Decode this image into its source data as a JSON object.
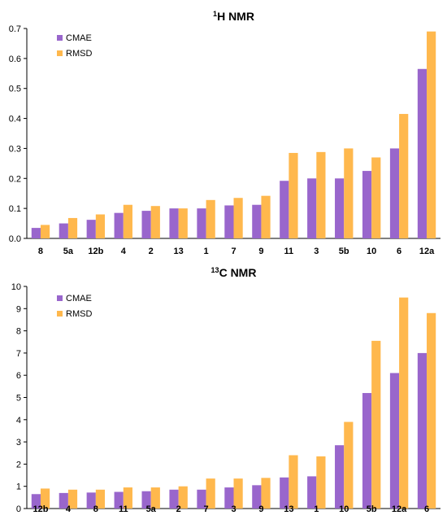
{
  "colors": {
    "CMAE": "#9966CC",
    "RMSD": "#FFB84D"
  },
  "chart_data": [
    {
      "type": "bar",
      "title_sup": "1",
      "title_main": "H NMR",
      "legend_position": "top-left",
      "ylim": [
        0,
        0.7
      ],
      "yticks": [
        "0.0",
        "0.1",
        "0.2",
        "0.3",
        "0.4",
        "0.5",
        "0.6",
        "0.7"
      ],
      "categories": [
        "8",
        "5a",
        "12b",
        "4",
        "2",
        "13",
        "1",
        "7",
        "9",
        "11",
        "3",
        "5b",
        "10",
        "6",
        "12a"
      ],
      "series": [
        {
          "name": "CMAE",
          "values": [
            0.035,
            0.05,
            0.062,
            0.085,
            0.092,
            0.1,
            0.1,
            0.11,
            0.112,
            0.192,
            0.2,
            0.2,
            0.225,
            0.3,
            0.565
          ]
        },
        {
          "name": "RMSD",
          "values": [
            0.045,
            0.068,
            0.08,
            0.112,
            0.108,
            0.1,
            0.128,
            0.135,
            0.142,
            0.285,
            0.288,
            0.3,
            0.27,
            0.415,
            0.69
          ]
        }
      ]
    },
    {
      "type": "bar",
      "title_sup": "13",
      "title_main": "C NMR",
      "legend_position": "top-left",
      "ylim": [
        0,
        10
      ],
      "yticks": [
        "0",
        "1",
        "2",
        "3",
        "4",
        "5",
        "6",
        "7",
        "8",
        "9",
        "10"
      ],
      "categories": [
        "12b",
        "4",
        "8",
        "11",
        "5a",
        "2",
        "7",
        "3",
        "9",
        "13",
        "1",
        "10",
        "5b",
        "12a",
        "6"
      ],
      "series": [
        {
          "name": "CMAE",
          "values": [
            0.65,
            0.7,
            0.72,
            0.75,
            0.78,
            0.85,
            0.85,
            0.95,
            1.05,
            1.4,
            1.45,
            2.85,
            5.2,
            6.1,
            7.0
          ]
        },
        {
          "name": "RMSD",
          "values": [
            0.9,
            0.85,
            0.85,
            0.95,
            0.95,
            1.0,
            1.35,
            1.35,
            1.38,
            2.4,
            2.35,
            3.9,
            7.55,
            9.5,
            8.8
          ]
        }
      ]
    }
  ]
}
